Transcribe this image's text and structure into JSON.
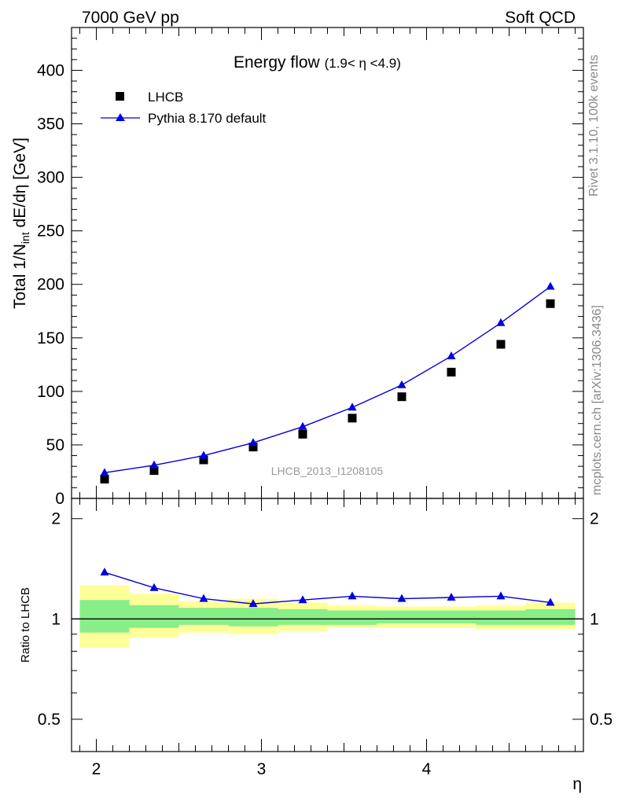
{
  "header": {
    "left": "7000 GeV pp",
    "right": "Soft QCD"
  },
  "side_text": {
    "rivet": "Rivet 3.1.10,  100k events",
    "mcplots": "mcplots.cern.ch [arXiv:1306.3436]"
  },
  "chart_data": [
    {
      "type": "scatter",
      "title": "Energy flow",
      "title_sub": "(1.9< η <4.9)",
      "analysis_label": "LHCB_2013_I1208105",
      "xlabel": "",
      "ylabel": "Total 1/N",
      "ylabel_sub": "int",
      "ylabel_rest": " dE/dη [GeV]",
      "xlim": [
        1.85,
        4.95
      ],
      "ylim": [
        0,
        440
      ],
      "yticks": [
        0,
        50,
        100,
        150,
        200,
        250,
        300,
        350,
        400
      ],
      "ytick_labels": [
        "0",
        "50",
        "100",
        "150",
        "200",
        "250",
        "300",
        "350",
        "400"
      ],
      "legend_position": "top-left",
      "x": [
        2.05,
        2.35,
        2.65,
        2.95,
        3.25,
        3.55,
        3.85,
        4.15,
        4.45,
        4.75
      ],
      "series": [
        {
          "name": "LHCB",
          "marker": "square",
          "color": "#000000",
          "values": [
            18,
            26,
            36,
            48,
            60,
            75,
            95,
            118,
            144,
            182
          ]
        },
        {
          "name": "Pythia 8.170 default",
          "marker": "triangle",
          "line": true,
          "color": "#0000dd",
          "values": [
            24,
            31,
            40,
            52,
            67,
            85,
            106,
            133,
            164,
            198
          ]
        }
      ]
    },
    {
      "type": "line",
      "ylabel": "Ratio to LHCB",
      "xlabel": "η",
      "xlim": [
        1.85,
        4.95
      ],
      "ylim": [
        0.4,
        2.3
      ],
      "log_y": true,
      "xticks": [
        2,
        3,
        4
      ],
      "xtick_labels": [
        "2",
        "3",
        "4"
      ],
      "yticks": [
        0.5,
        1,
        2
      ],
      "ytick_labels": [
        "0.5",
        "1",
        "2"
      ],
      "bin_edges": [
        1.9,
        2.2,
        2.5,
        2.8,
        3.1,
        3.4,
        3.7,
        4.0,
        4.3,
        4.6,
        4.9
      ],
      "band_yellow": [
        [
          0.82,
          1.26
        ],
        [
          0.88,
          1.19
        ],
        [
          0.91,
          1.13
        ],
        [
          0.9,
          1.15
        ],
        [
          0.92,
          1.12
        ],
        [
          0.94,
          1.1
        ],
        [
          0.94,
          1.09
        ],
        [
          0.94,
          1.09
        ],
        [
          0.93,
          1.1
        ],
        [
          0.93,
          1.12
        ]
      ],
      "band_green": [
        [
          0.91,
          1.14
        ],
        [
          0.94,
          1.1
        ],
        [
          0.96,
          1.08
        ],
        [
          0.95,
          1.08
        ],
        [
          0.96,
          1.07
        ],
        [
          0.96,
          1.06
        ],
        [
          0.97,
          1.06
        ],
        [
          0.97,
          1.06
        ],
        [
          0.96,
          1.06
        ],
        [
          0.96,
          1.07
        ]
      ],
      "x": [
        2.05,
        2.35,
        2.65,
        2.95,
        3.25,
        3.55,
        3.85,
        4.15,
        4.45,
        4.75
      ],
      "series": [
        {
          "name": "Pythia 8.170 default",
          "color": "#0000dd",
          "values": [
            1.38,
            1.24,
            1.15,
            1.11,
            1.14,
            1.17,
            1.15,
            1.16,
            1.17,
            1.12
          ]
        }
      ]
    }
  ]
}
